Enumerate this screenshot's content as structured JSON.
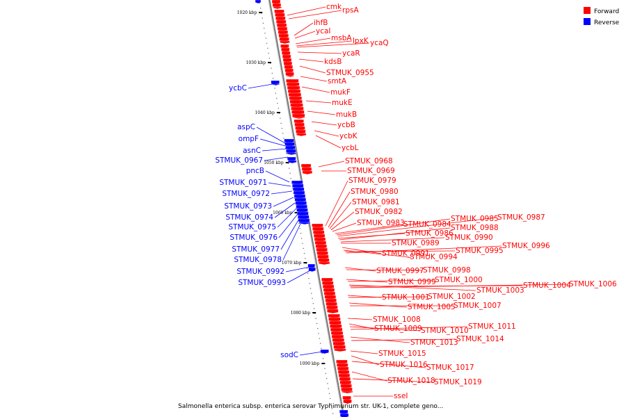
{
  "caption": "Salmonella enterica subsp. enterica serovar Typhimurium str. UK-1, complete geno...",
  "legend": [
    {
      "label": "Forward",
      "color": "#ff0000"
    },
    {
      "label": "Reverse",
      "color": "#0000ff"
    }
  ],
  "colors": {
    "forward": "#ff0000",
    "reverse": "#0000ff",
    "backbone": "#9a9a9a"
  },
  "ticks": [
    "1020 kbp",
    "1030 kbp",
    "1040 kbp",
    "1050 kbp",
    "1060 kbp",
    "1070 kbp",
    "1080 kbp",
    "1090 kbp"
  ],
  "forward_genes": [
    "cmk",
    "rpsA",
    "ihfB",
    "ycaI",
    "msbA",
    "lpxK",
    "ycaQ",
    "ycaR",
    "kdsB",
    "STMUK_0955",
    "smtA",
    "mukF",
    "mukE",
    "mukB",
    "ycbB",
    "ycbK",
    "ycbL",
    "STMUK_0968",
    "STMUK_0969",
    "STMUK_0979",
    "STMUK_0980",
    "STMUK_0981",
    "STMUK_0982",
    "STMUK_0983",
    "STMUK_0984",
    "STMUK_0985",
    "STMUK_0987",
    "STMUK_0986",
    "STMUK_0988",
    "STMUK_0990",
    "STMUK_0989",
    "STMUK_0991",
    "STMUK_0994",
    "STMUK_0995",
    "STMUK_0996",
    "STMUK_0997",
    "STMUK_0998",
    "STMUK_0999",
    "STMUK_1000",
    "STMUK_1003",
    "STMUK_1004",
    "STMUK_1006",
    "STMUK_1001",
    "STMUK_1002",
    "STMUK_1005",
    "STMUK_1007",
    "STMUK_1008",
    "STMUK_1009",
    "STMUK_1010",
    "STMUK_1011",
    "STMUK_1013",
    "STMUK_1014",
    "STMUK_1015",
    "STMUK_1016",
    "STMUK_1017",
    "STMUK_1018",
    "STMUK_1019",
    "sseI"
  ],
  "reverse_genes": [
    "ycbC",
    "aspC",
    "ompF",
    "asnC",
    "STMUK_0967",
    "pncB",
    "STMUK_0971",
    "STMUK_0972",
    "STMUK_0973",
    "STMUK_0974",
    "STMUK_0975",
    "STMUK_0976",
    "STMUK_0977",
    "STMUK_0978",
    "STMUK_0992",
    "STMUK_0993",
    "sodC"
  ]
}
